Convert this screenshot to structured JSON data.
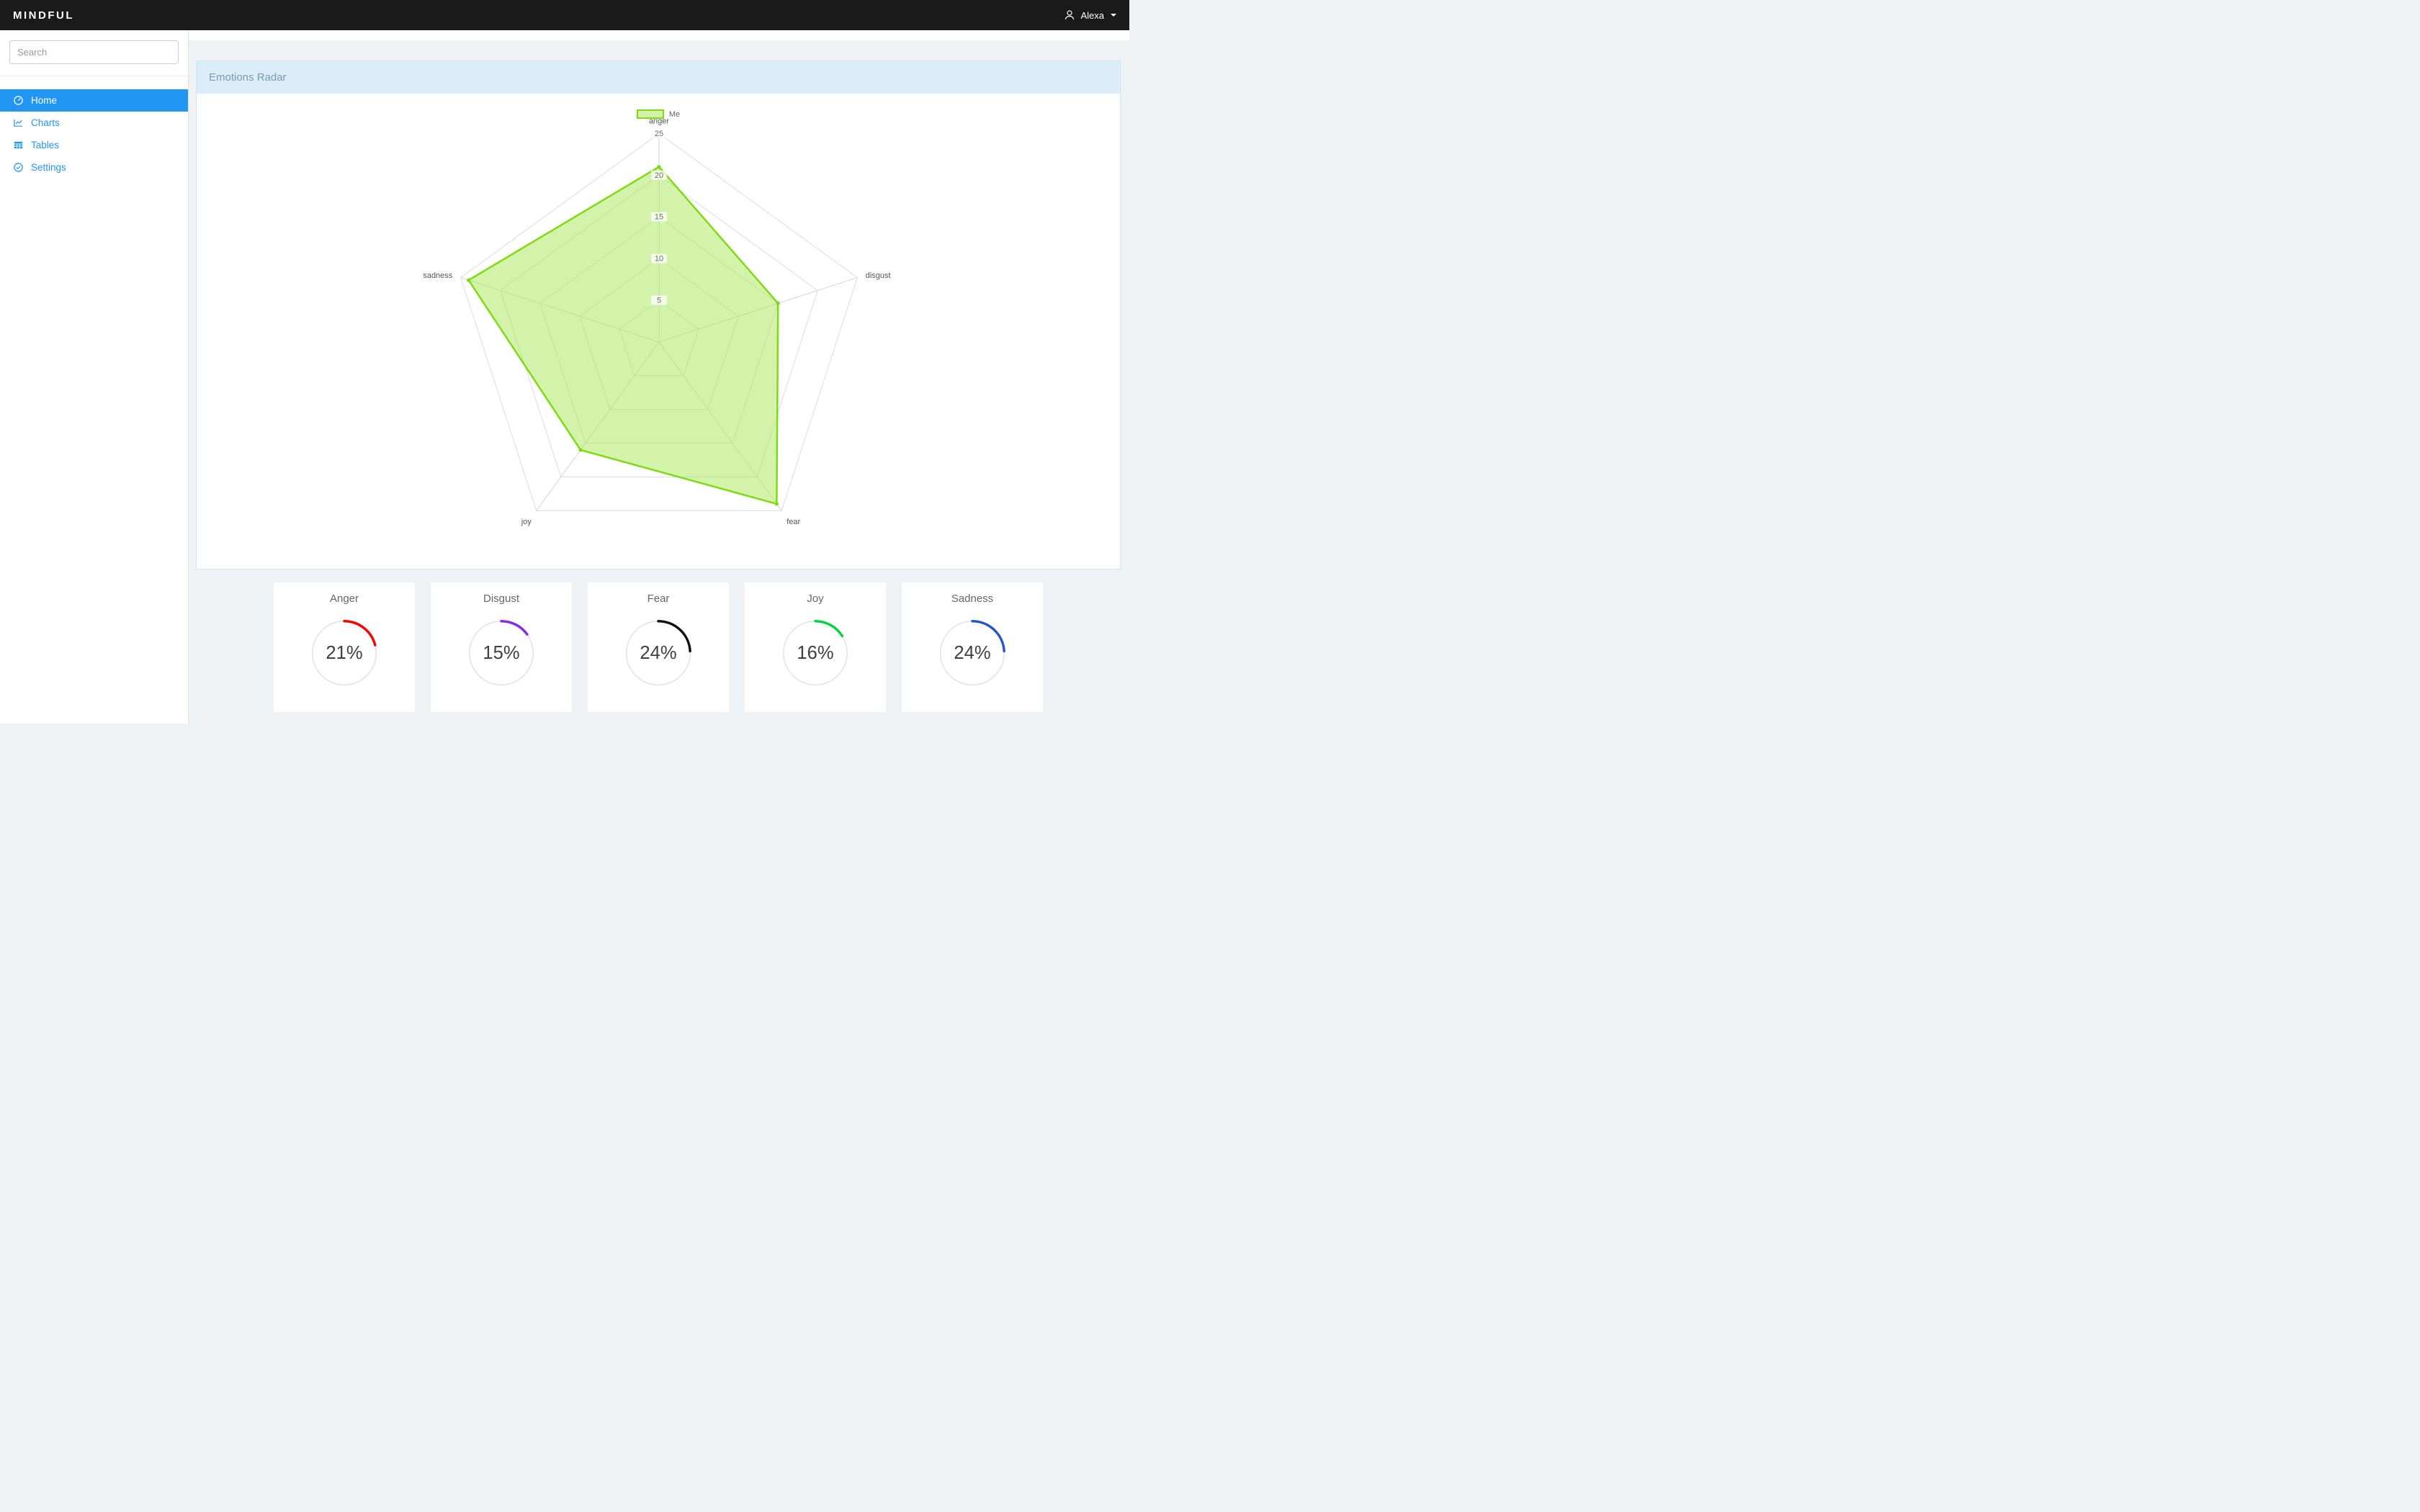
{
  "navbar": {
    "brand": "MINDFUL",
    "user": "Alexa"
  },
  "sidebar": {
    "search_placeholder": "Search",
    "items": [
      {
        "label": "Home",
        "icon": "dashboard-icon",
        "active": true
      },
      {
        "label": "Charts",
        "icon": "line-chart-icon",
        "active": false
      },
      {
        "label": "Tables",
        "icon": "table-icon",
        "active": false
      },
      {
        "label": "Settings",
        "icon": "check-circle-icon",
        "active": false
      }
    ]
  },
  "panel": {
    "title": "Emotions Radar"
  },
  "chart_data": {
    "type": "radar",
    "title": "Emotions Radar",
    "categories": [
      "anger",
      "disgust",
      "fear",
      "joy",
      "sadness"
    ],
    "series": [
      {
        "name": "Me",
        "values": [
          21,
          15,
          24,
          16,
          24
        ],
        "color": "#7ddb11",
        "fill": "rgba(167,231,87,0.5)"
      }
    ],
    "rmax": 25,
    "ticks": [
      5,
      10,
      15,
      20,
      25
    ],
    "grid": true,
    "legend_position": "top"
  },
  "gauges": {
    "items": [
      {
        "label": "Anger",
        "value": 21,
        "display": "21%",
        "color": "#f50400"
      },
      {
        "label": "Disgust",
        "value": 15,
        "display": "15%",
        "color": "#8a2be2"
      },
      {
        "label": "Fear",
        "value": 24,
        "display": "24%",
        "color": "#111111"
      },
      {
        "label": "Joy",
        "value": 16,
        "display": "16%",
        "color": "#00d33c"
      },
      {
        "label": "Sadness",
        "value": 24,
        "display": "24%",
        "color": "#2456cc"
      }
    ]
  }
}
